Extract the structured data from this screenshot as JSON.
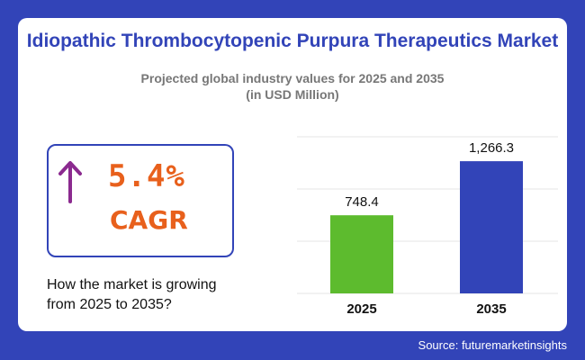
{
  "title": "Idiopathic Thrombocytopenic Purpura Therapeutics Market",
  "subtitle_line1": "Projected global industry values for 2025 and 2035",
  "subtitle_line2": "(in USD Million)",
  "cagr": {
    "value": "5.4%",
    "label": "CAGR",
    "arrow_icon": "up-arrow-icon",
    "arrow_color": "#8b2a8f",
    "text_color": "#e8601c"
  },
  "growth_line1": "How the market is growing",
  "growth_line2": "from 2025 to 2035?",
  "source": "Source: futuremarketinsights",
  "colors": {
    "background": "#3244b8",
    "bar_2025": "#5dbb2e",
    "bar_2035": "#3244b8"
  },
  "chart_data": {
    "type": "bar",
    "categories": [
      "2025",
      "2035"
    ],
    "values": [
      748.4,
      1266.3
    ],
    "value_labels": [
      "748.4",
      "1,266.3"
    ],
    "colors": [
      "#5dbb2e",
      "#3244b8"
    ],
    "ylim": [
      0,
      1500
    ],
    "grid": true,
    "legend": "none"
  }
}
